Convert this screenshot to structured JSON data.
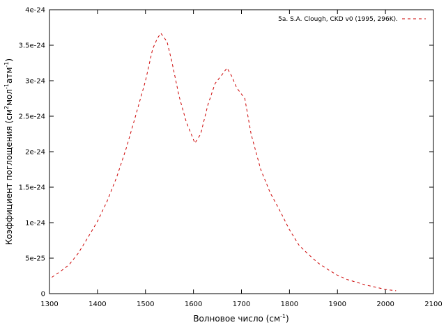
{
  "chart_data": {
    "type": "line",
    "xlabel": "Волновое число (см",
    "xlabel_sup": "-1",
    "xlabel_end": ")",
    "ylabel": "Коэффициент поглощения (см",
    "ylabel_sup1": "2",
    "ylabel_mid": "мол",
    "ylabel_sup2": "-1",
    "ylabel_mid2": "атм",
    "ylabel_sup3": "-1",
    "ylabel_end": ")",
    "xlim": [
      1300,
      2100
    ],
    "ylim": [
      0,
      4e-24
    ],
    "xticks": [
      1300,
      1400,
      1500,
      1600,
      1700,
      1800,
      1900,
      2000,
      2100
    ],
    "yticks": [
      0,
      5e-25,
      1e-24,
      1.5e-24,
      2e-24,
      2.5e-24,
      3e-24,
      3.5e-24,
      4e-24
    ],
    "xtick_labels": [
      "1300",
      "1400",
      "1500",
      "1600",
      "1700",
      "1800",
      "1900",
      "2000",
      "2100"
    ],
    "ytick_labels": [
      "0",
      "5e-25",
      "1e-24",
      "1.5e-24",
      "2e-24",
      "2.5e-24",
      "3e-24",
      "3.5e-24",
      "4e-24"
    ],
    "legend_position": "top-right",
    "series": [
      {
        "name": "5a. S.A. Clough,  CKD v0 (1995, 296K).",
        "color": "#cc0000",
        "dash": "dashed",
        "x": [
          1305,
          1320,
          1340,
          1360,
          1380,
          1400,
          1420,
          1440,
          1460,
          1480,
          1500,
          1515,
          1525,
          1532,
          1545,
          1555,
          1570,
          1585,
          1603,
          1615,
          1630,
          1645,
          1660,
          1670,
          1680,
          1690,
          1707,
          1720,
          1740,
          1760,
          1780,
          1800,
          1820,
          1840,
          1860,
          1880,
          1900,
          1920,
          1940,
          1960,
          1980,
          2000,
          2022
        ],
        "y": [
          2.3e-25,
          3e-25,
          4e-25,
          5.7e-25,
          7.9e-25,
          1.02e-24,
          1.3e-24,
          1.64e-24,
          2.05e-24,
          2.52e-24,
          3e-24,
          3.45e-24,
          3.6e-24,
          3.67e-24,
          3.55e-24,
          3.27e-24,
          2.78e-24,
          2.42e-24,
          2.12e-24,
          2.25e-24,
          2.66e-24,
          2.96e-24,
          3.09e-24,
          3.18e-24,
          3.06e-24,
          2.9e-24,
          2.75e-24,
          2.25e-24,
          1.75e-24,
          1.42e-24,
          1.17e-24,
          9e-25,
          6.8e-25,
          5.5e-25,
          4.3e-25,
          3.4e-25,
          2.6e-25,
          2e-25,
          1.6e-25,
          1.2e-25,
          9e-26,
          6e-26,
          4e-26
        ]
      }
    ]
  }
}
